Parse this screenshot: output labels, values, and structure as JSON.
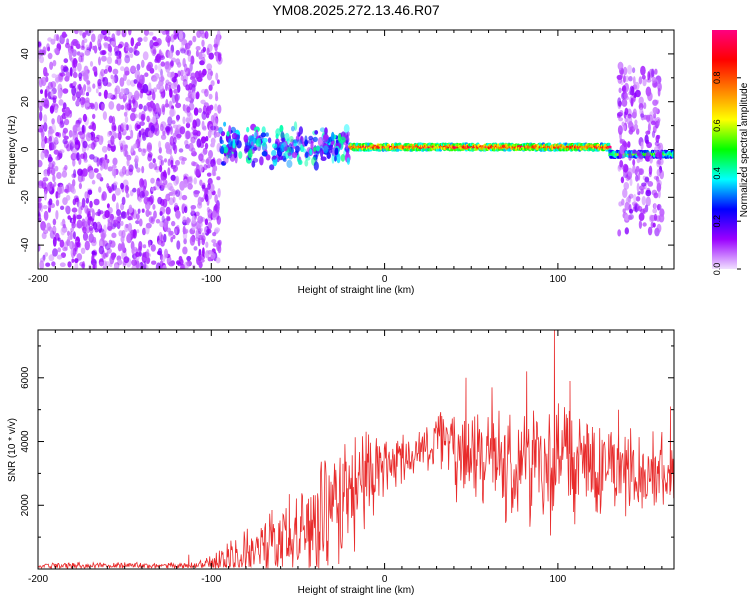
{
  "title": "YM08.2025.272.13.46.R07",
  "chart_data": [
    {
      "type": "heatmap",
      "title": "YM08.2025.272.13.46.R07",
      "xlabel": "Height of straight line (km)",
      "ylabel": "Frequency (Hz)",
      "xlim": [
        -200,
        167
      ],
      "ylim": [
        -50,
        50
      ],
      "xticks": [
        -200,
        -100,
        0,
        100
      ],
      "yticks": [
        -40,
        -20,
        0,
        20,
        40
      ],
      "regions": [
        {
          "name": "broadband noise",
          "x": [
            -200,
            -95
          ],
          "freq": [
            -50,
            50
          ],
          "amplitude": 0.1
        },
        {
          "name": "spreading echo",
          "x": [
            -95,
            -20
          ],
          "freq": [
            -10,
            12
          ],
          "amplitude": 0.3
        },
        {
          "name": "coherent trace",
          "x": [
            -20,
            130
          ],
          "freq_center": 1,
          "amplitude": 1.0
        },
        {
          "name": "end trace",
          "x": [
            130,
            167
          ],
          "freq_center": -2,
          "amplitude": 0.6
        },
        {
          "name": "late broadband",
          "x": [
            135,
            160
          ],
          "freq": [
            -35,
            35
          ],
          "amplitude": 0.1
        }
      ],
      "colorbar": {
        "label": "Normalized spectral amplitude",
        "range": [
          0.0,
          1.0
        ],
        "ticks": [
          "0.0",
          "0.2",
          "0.4",
          "0.6",
          "0.8"
        ],
        "colors": [
          "#f0e0ff",
          "#9a00ff",
          "#0000ff",
          "#00ffff",
          "#00ff00",
          "#ffff00",
          "#ff8000",
          "#ff0000",
          "#ff0080"
        ]
      }
    },
    {
      "type": "line",
      "xlabel": "Height of straight line (km)",
      "ylabel": "SNR (10 * v/v)",
      "xlim": [
        -200,
        167
      ],
      "ylim": [
        0,
        7500
      ],
      "xticks": [
        -200,
        -100,
        0,
        100
      ],
      "yticks": [
        2000,
        4000,
        6000
      ],
      "line_color": "#e82b2b",
      "series": [
        {
          "name": "SNR",
          "envelope": {
            "x": [
              -200,
              -150,
              -110,
              -100,
              -90,
              -80,
              -70,
              -60,
              -50,
              -40,
              -30,
              -20,
              -10,
              0,
              10,
              20,
              30,
              35,
              40,
              50,
              60,
              70,
              80,
              90,
              100,
              110,
              120,
              130,
              140,
              150,
              160,
              167
            ],
            "base": [
              100,
              100,
              100,
              150,
              300,
              500,
              700,
              900,
              1100,
              1400,
              1800,
              2300,
              2900,
              3300,
              3500,
              3700,
              4000,
              4100,
              3800,
              3500,
              3500,
              3400,
              3300,
              3300,
              3200,
              3200,
              3200,
              3300,
              3100,
              3100,
              3000,
              2800
            ],
            "amp": [
              120,
              130,
              140,
              300,
              600,
              900,
              1200,
              1500,
              1700,
              2000,
              2300,
              2200,
              1800,
              1300,
              900,
              700,
              1100,
              1000,
              1800,
              2000,
              2000,
              2100,
              2300,
              2400,
              2300,
              2200,
              2000,
              1900,
              1500,
              1400,
              1300,
              1200
            ]
          },
          "peaks": [
            {
              "x": -113,
              "y": 450
            },
            {
              "x": -65,
              "y": 1850
            },
            {
              "x": -55,
              "y": 2350
            },
            {
              "x": -30,
              "y": 2650
            },
            {
              "x": -24,
              "y": 3300
            },
            {
              "x": 20,
              "y": 4300
            },
            {
              "x": 33,
              "y": 4800
            },
            {
              "x": 47,
              "y": 6000
            },
            {
              "x": 62,
              "y": 5700
            },
            {
              "x": 82,
              "y": 6200
            },
            {
              "x": 98,
              "y": 7600
            },
            {
              "x": 107,
              "y": 5900
            },
            {
              "x": 135,
              "y": 5000
            },
            {
              "x": 160,
              "y": 4300
            },
            {
              "x": 165,
              "y": 5100
            }
          ]
        }
      ]
    }
  ]
}
